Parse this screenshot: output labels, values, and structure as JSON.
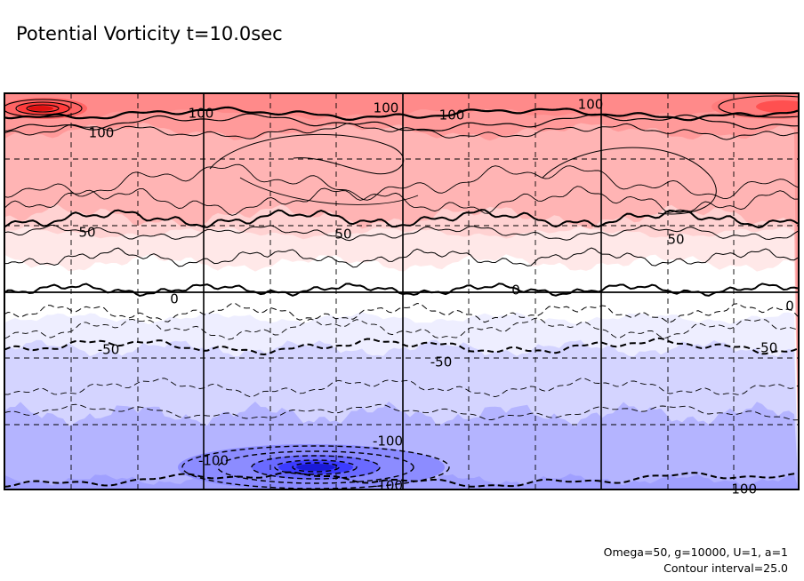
{
  "chart_data": {
    "type": "contour",
    "title": "Potential Vorticity t=10.0sec",
    "xlabel": "",
    "ylabel": "",
    "contour_interval": 25.0,
    "contour_levels": [
      -125,
      -100,
      -75,
      -50,
      -25,
      0,
      25,
      50,
      75,
      100,
      125
    ],
    "labeled_levels": [
      {
        "text": "100",
        "value": 100
      },
      {
        "text": "100",
        "value": 100
      },
      {
        "text": "100",
        "value": 100
      },
      {
        "text": "100",
        "value": 100
      },
      {
        "text": "100",
        "value": 100
      },
      {
        "text": "50",
        "value": 50
      },
      {
        "text": "50",
        "value": 50
      },
      {
        "text": "50",
        "value": 50
      },
      {
        "text": "0",
        "value": 0
      },
      {
        "text": "0",
        "value": 0
      },
      {
        "text": "0",
        "value": 0
      },
      {
        "text": "-50",
        "value": -50
      },
      {
        "text": "-50",
        "value": -50
      },
      {
        "text": "-50",
        "value": -50
      },
      {
        "text": "-100",
        "value": -100
      },
      {
        "text": "-100",
        "value": -100
      },
      {
        "text": "-100",
        "value": -100
      },
      {
        "text": "-100",
        "value": -100
      }
    ],
    "positive_color": "#ff6e6e",
    "negative_color": "#6e6eff",
    "negative_contours": "dashed",
    "grid": true,
    "grid_style": "dashed",
    "legend": "none"
  },
  "annotations": {
    "params": "Omega=50, g=10000, U=1, a=1",
    "interval": "Contour interval=25.0"
  }
}
